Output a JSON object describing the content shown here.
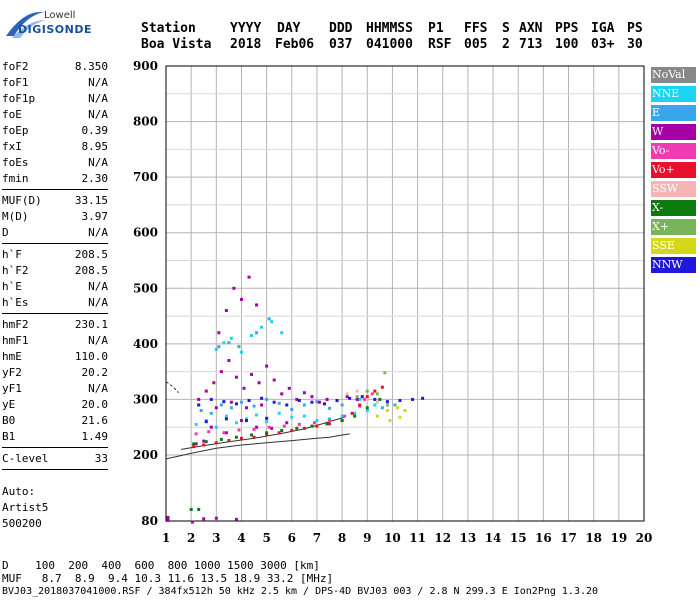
{
  "logo": {
    "top_text": "Lowell",
    "bottom_text": "DIGISONDE"
  },
  "header": {
    "row1": [
      {
        "key": "station",
        "text": "Station"
      },
      {
        "key": "yyyy",
        "text": "YYYY"
      },
      {
        "key": "day",
        "text": "DAY"
      },
      {
        "key": "ddd",
        "text": "DDD"
      },
      {
        "key": "hhmmss",
        "text": "HHMMSS"
      },
      {
        "key": "p1",
        "text": "P1"
      },
      {
        "key": "ffs",
        "text": "FFS"
      },
      {
        "key": "s",
        "text": "S"
      },
      {
        "key": "axn",
        "text": "AXN"
      },
      {
        "key": "pps",
        "text": "PPS"
      },
      {
        "key": "iga",
        "text": "IGA"
      },
      {
        "key": "ps",
        "text": "PS"
      }
    ],
    "row2": [
      {
        "key": "station",
        "text": "Boa Vista"
      },
      {
        "key": "yyyy",
        "text": "2018"
      },
      {
        "key": "day",
        "text": "Feb06"
      },
      {
        "key": "ddd",
        "text": "037"
      },
      {
        "key": "hhmmss",
        "text": "041000"
      },
      {
        "key": "p1",
        "text": "RSF"
      },
      {
        "key": "ffs",
        "text": "005"
      },
      {
        "key": "s",
        "text": "2"
      },
      {
        "key": "axn",
        "text": "713"
      },
      {
        "key": "pps",
        "text": "100"
      },
      {
        "key": "iga",
        "text": "03+"
      },
      {
        "key": "ps",
        "text": "30"
      }
    ]
  },
  "parameters": [
    {
      "name": "foF2",
      "value": "8.350"
    },
    {
      "name": "foF1",
      "value": "N/A"
    },
    {
      "name": "foF1p",
      "value": "N/A"
    },
    {
      "name": "foE",
      "value": "N/A"
    },
    {
      "name": "foEp",
      "value": "0.39"
    },
    {
      "name": "fxI",
      "value": "8.95"
    },
    {
      "name": "foEs",
      "value": "N/A"
    },
    {
      "name": "fmin",
      "value": "2.30"
    },
    {
      "sep": true
    },
    {
      "name": "MUF(D)",
      "value": "33.15"
    },
    {
      "name": "M(D)",
      "value": "3.97"
    },
    {
      "name": "D",
      "value": "N/A"
    },
    {
      "sep": true
    },
    {
      "name": "h`F",
      "value": "208.5"
    },
    {
      "name": "h`F2",
      "value": "208.5"
    },
    {
      "name": "h`E",
      "value": "N/A"
    },
    {
      "name": "h`Es",
      "value": "N/A"
    },
    {
      "sep": true
    },
    {
      "name": "hmF2",
      "value": "230.1"
    },
    {
      "name": "hmF1",
      "value": "N/A"
    },
    {
      "name": "hmE",
      "value": "110.0"
    },
    {
      "name": "yF2",
      "value": "20.2"
    },
    {
      "name": "yF1",
      "value": "N/A"
    },
    {
      "name": "yE",
      "value": "20.0"
    },
    {
      "name": "B0",
      "value": "21.6"
    },
    {
      "name": "B1",
      "value": "1.49"
    },
    {
      "sep": true
    },
    {
      "name": "C-level",
      "value": "33"
    },
    {
      "sep": true
    }
  ],
  "autoscale": {
    "line1": "Auto:",
    "line2": "Artist5",
    "line3": "500200"
  },
  "legend": [
    {
      "label": "NoVal",
      "color": "#888888"
    },
    {
      "label": "NNE",
      "color": "#19d4f2"
    },
    {
      "label": "E",
      "color": "#3aa6ea"
    },
    {
      "label": "W",
      "color": "#a400a4"
    },
    {
      "label": "Vo-",
      "color": "#f03cb4"
    },
    {
      "label": "Vo+",
      "color": "#e8102a"
    },
    {
      "label": "SSW",
      "color": "#f6b4b4"
    },
    {
      "label": "X-",
      "color": "#0d7a0d"
    },
    {
      "label": "X+",
      "color": "#78b45a"
    },
    {
      "label": "SSE",
      "color": "#d6d61a"
    },
    {
      "label": "NNW",
      "color": "#2018d8"
    }
  ],
  "footer": {
    "line1": "D    100  200  400  600  800 1000 1500 3000 [km]",
    "line2": "MUF   8.7  8.9  9.4 10.3 11.6 13.5 18.9 33.2 [MHz]",
    "line3": "BVJ03_2018037041000.RSF / 384fx512h 50 kHz 2.5 km / DPS-4D BVJ03 003 / 2.8 N 299.3 E Ion2Png 1.3.20"
  },
  "chart_data": {
    "type": "scatter",
    "xlim": [
      1,
      20
    ],
    "ylim": [
      80,
      900
    ],
    "x_ticks": [
      1,
      2,
      3,
      4,
      5,
      6,
      7,
      8,
      9,
      10,
      11,
      12,
      13,
      14,
      15,
      16,
      17,
      18,
      19,
      20
    ],
    "y_ticks": [
      80,
      200,
      300,
      400,
      500,
      600,
      700,
      800,
      900
    ],
    "grid": true,
    "legend_position": "right",
    "series": [
      {
        "name": "NNE",
        "color": "#19d4f2",
        "points": [
          [
            2.2,
            255
          ],
          [
            2.6,
            262
          ],
          [
            3.0,
            250
          ],
          [
            3.4,
            270
          ],
          [
            3.8,
            258
          ],
          [
            4.2,
            265
          ],
          [
            4.6,
            272
          ],
          [
            5.0,
            260
          ],
          [
            5.5,
            275
          ],
          [
            6.0,
            268
          ],
          [
            6.5,
            270
          ],
          [
            7.0,
            262
          ],
          [
            7.5,
            265
          ],
          [
            8.0,
            270
          ],
          [
            8.5,
            275
          ],
          [
            9.0,
            280
          ],
          [
            3.0,
            390
          ],
          [
            3.3,
            402
          ],
          [
            3.6,
            410
          ],
          [
            4.0,
            385
          ],
          [
            4.4,
            415
          ],
          [
            4.8,
            430
          ],
          [
            5.2,
            440
          ],
          [
            5.6,
            420
          ],
          [
            8.7,
            300
          ],
          [
            9.3,
            290
          ]
        ]
      },
      {
        "name": "E",
        "color": "#3aa6ea",
        "points": [
          [
            2.4,
            280
          ],
          [
            2.8,
            275
          ],
          [
            3.2,
            290
          ],
          [
            3.6,
            285
          ],
          [
            4.0,
            295
          ],
          [
            4.5,
            288
          ],
          [
            5.0,
            300
          ],
          [
            5.5,
            293
          ],
          [
            6.0,
            282
          ],
          [
            6.5,
            290
          ],
          [
            7.0,
            296
          ],
          [
            7.5,
            284
          ],
          [
            8.0,
            290
          ],
          [
            3.1,
            395
          ],
          [
            3.5,
            402
          ],
          [
            3.9,
            395
          ],
          [
            4.6,
            420
          ],
          [
            5.1,
            445
          ],
          [
            9.6,
            285
          ],
          [
            10.1,
            290
          ]
        ]
      },
      {
        "name": "W",
        "color": "#a400a4",
        "points": [
          [
            2.3,
            300
          ],
          [
            2.6,
            315
          ],
          [
            2.9,
            330
          ],
          [
            3.2,
            350
          ],
          [
            3.5,
            370
          ],
          [
            3.8,
            340
          ],
          [
            4.1,
            320
          ],
          [
            4.4,
            345
          ],
          [
            4.7,
            330
          ],
          [
            5.0,
            360
          ],
          [
            5.3,
            335
          ],
          [
            5.6,
            310
          ],
          [
            5.9,
            320
          ],
          [
            6.2,
            300
          ],
          [
            6.5,
            312
          ],
          [
            6.8,
            305
          ],
          [
            7.1,
            295
          ],
          [
            7.4,
            300
          ],
          [
            7.8,
            298
          ],
          [
            8.2,
            305
          ],
          [
            8.6,
            300
          ],
          [
            2.8,
            250
          ],
          [
            3.4,
            240
          ],
          [
            4.0,
            262
          ],
          [
            4.6,
            250
          ],
          [
            5.2,
            248
          ],
          [
            5.8,
            258
          ],
          [
            3.1,
            420
          ],
          [
            3.4,
            460
          ],
          [
            3.7,
            500
          ],
          [
            4.0,
            480
          ],
          [
            4.3,
            520
          ],
          [
            4.6,
            470
          ],
          [
            2.2,
            220
          ],
          [
            2.5,
            225
          ],
          [
            3.0,
            285
          ],
          [
            3.6,
            295
          ],
          [
            4.2,
            285
          ],
          [
            4.8,
            290
          ],
          [
            2.05,
            78
          ],
          [
            3.0,
            85
          ],
          [
            2.5,
            84
          ],
          [
            3.8,
            83
          ]
        ]
      },
      {
        "name": "Vo-",
        "color": "#f03cb4",
        "points": [
          [
            2.2,
            238
          ],
          [
            2.7,
            242
          ],
          [
            3.3,
            240
          ],
          [
            3.9,
            245
          ],
          [
            4.5,
            246
          ],
          [
            5.1,
            250
          ],
          [
            5.7,
            252
          ],
          [
            6.3,
            255
          ],
          [
            6.9,
            258
          ],
          [
            7.5,
            262
          ],
          [
            8.1,
            270
          ],
          [
            8.7,
            288
          ],
          [
            8.9,
            300
          ],
          [
            9.2,
            310
          ]
        ]
      },
      {
        "name": "Vo+",
        "color": "#e8102a",
        "points": [
          [
            2.1,
            215
          ],
          [
            2.5,
            218
          ],
          [
            3.0,
            222
          ],
          [
            3.5,
            226
          ],
          [
            4.0,
            230
          ],
          [
            4.5,
            232
          ],
          [
            5.0,
            236
          ],
          [
            5.5,
            240
          ],
          [
            6.0,
            244
          ],
          [
            6.5,
            248
          ],
          [
            7.0,
            252
          ],
          [
            7.5,
            256
          ],
          [
            8.0,
            262
          ],
          [
            8.4,
            275
          ],
          [
            8.7,
            290
          ],
          [
            9.0,
            305
          ],
          [
            9.3,
            315
          ],
          [
            9.6,
            322
          ]
        ]
      },
      {
        "name": "SSW",
        "color": "#f6b4b4",
        "points": [
          [
            8.2,
            310
          ],
          [
            8.6,
            315
          ],
          [
            9.0,
            300
          ],
          [
            9.4,
            295
          ]
        ]
      },
      {
        "name": "X-",
        "color": "#0d7a0d",
        "points": [
          [
            2.1,
            220
          ],
          [
            2.6,
            224
          ],
          [
            3.2,
            228
          ],
          [
            3.8,
            232
          ],
          [
            4.4,
            236
          ],
          [
            5.0,
            240
          ],
          [
            5.6,
            244
          ],
          [
            6.2,
            248
          ],
          [
            6.8,
            252
          ],
          [
            7.4,
            256
          ],
          [
            8.0,
            262
          ],
          [
            8.5,
            270
          ],
          [
            9.0,
            285
          ],
          [
            9.5,
            300
          ],
          [
            2.0,
            101
          ],
          [
            2.3,
            101
          ]
        ]
      },
      {
        "name": "X+",
        "color": "#78b45a",
        "points": [
          [
            8.6,
            305
          ],
          [
            9.0,
            315
          ],
          [
            9.4,
            310
          ],
          [
            9.8,
            290
          ],
          [
            9.7,
            348
          ]
        ]
      },
      {
        "name": "SSE",
        "color": "#d6d61a",
        "points": [
          [
            9.4,
            270
          ],
          [
            9.8,
            280
          ],
          [
            10.2,
            285
          ],
          [
            10.5,
            280
          ],
          [
            9.9,
            262
          ],
          [
            10.3,
            268
          ]
        ]
      },
      {
        "name": "NNW",
        "color": "#2018d8",
        "points": [
          [
            2.3,
            290
          ],
          [
            2.8,
            300
          ],
          [
            3.3,
            296
          ],
          [
            3.8,
            292
          ],
          [
            4.3,
            298
          ],
          [
            4.8,
            302
          ],
          [
            5.3,
            295
          ],
          [
            5.8,
            290
          ],
          [
            6.3,
            298
          ],
          [
            6.8,
            295
          ],
          [
            7.3,
            292
          ],
          [
            7.8,
            298
          ],
          [
            8.3,
            302
          ],
          [
            8.8,
            305
          ],
          [
            9.3,
            300
          ],
          [
            9.8,
            296
          ],
          [
            10.3,
            298
          ],
          [
            10.8,
            300
          ],
          [
            11.2,
            302
          ],
          [
            2.6,
            260
          ],
          [
            3.4,
            265
          ],
          [
            4.2,
            262
          ],
          [
            5.0,
            266
          ]
        ]
      }
    ],
    "trace_lines": [
      {
        "points": [
          [
            1.0,
            193
          ],
          [
            1.5,
            198
          ],
          [
            2.0,
            203
          ],
          [
            3.0,
            212
          ],
          [
            4.0,
            218
          ],
          [
            5.0,
            222
          ],
          [
            6.0,
            226
          ],
          [
            7.0,
            230
          ],
          [
            7.5,
            232
          ],
          [
            8.0,
            236
          ],
          [
            8.3,
            238
          ]
        ]
      },
      {
        "points": [
          [
            1.6,
            210
          ],
          [
            2.5,
            217
          ],
          [
            3.5,
            224
          ],
          [
            4.5,
            230
          ],
          [
            5.5,
            238
          ],
          [
            6.5,
            247
          ],
          [
            7.2,
            256
          ],
          [
            7.8,
            264
          ],
          [
            8.1,
            268
          ]
        ]
      },
      {
        "points": [
          [
            1.0,
            332
          ],
          [
            1.3,
            322
          ],
          [
            1.5,
            312
          ]
        ]
      }
    ]
  }
}
